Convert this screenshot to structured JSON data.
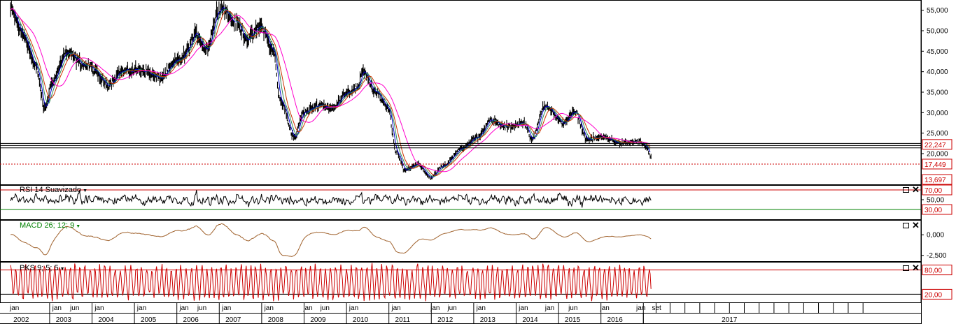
{
  "chart_data": [
    {
      "type": "line",
      "panel": "price",
      "description_series": [
        "price bars",
        "moving averages"
      ],
      "price_bars_color": "#000000",
      "moving_averages": [
        {
          "color": "#0000cc"
        },
        {
          "color": "#2e8b57"
        },
        {
          "color": "#cc3300"
        },
        {
          "color": "#ff00cc"
        }
      ],
      "y_ticks": [
        "55,000",
        "50,000",
        "45,000",
        "40,000",
        "35,000",
        "30,000",
        "25,000",
        "20,000"
      ],
      "y_tick_values": [
        55000,
        50000,
        45000,
        40000,
        35000,
        30000,
        25000,
        20000
      ],
      "ylim": [
        12500,
        57500
      ],
      "key_points": [
        {
          "t": 2002.0,
          "v": 55000
        },
        {
          "t": 2002.3,
          "v": 49000
        },
        {
          "t": 2002.6,
          "v": 41000
        },
        {
          "t": 2002.8,
          "v": 31000
        },
        {
          "t": 2003.0,
          "v": 38000
        },
        {
          "t": 2003.3,
          "v": 44500
        },
        {
          "t": 2003.8,
          "v": 41500
        },
        {
          "t": 2004.3,
          "v": 37000
        },
        {
          "t": 2004.6,
          "v": 40000
        },
        {
          "t": 2005.1,
          "v": 40500
        },
        {
          "t": 2005.5,
          "v": 38500
        },
        {
          "t": 2006.0,
          "v": 43000
        },
        {
          "t": 2006.4,
          "v": 49000
        },
        {
          "t": 2006.6,
          "v": 45500
        },
        {
          "t": 2006.95,
          "v": 56000
        },
        {
          "t": 2007.3,
          "v": 52000
        },
        {
          "t": 2007.6,
          "v": 48000
        },
        {
          "t": 2007.9,
          "v": 51000
        },
        {
          "t": 2008.2,
          "v": 45000
        },
        {
          "t": 2008.35,
          "v": 33000
        },
        {
          "t": 2008.7,
          "v": 24000
        },
        {
          "t": 2008.9,
          "v": 30000
        },
        {
          "t": 2009.3,
          "v": 32000
        },
        {
          "t": 2009.6,
          "v": 31000
        },
        {
          "t": 2009.9,
          "v": 35000
        },
        {
          "t": 2010.2,
          "v": 36000
        },
        {
          "t": 2010.3,
          "v": 40500
        },
        {
          "t": 2010.6,
          "v": 35000
        },
        {
          "t": 2010.9,
          "v": 31000
        },
        {
          "t": 2011.1,
          "v": 20000
        },
        {
          "t": 2011.3,
          "v": 16000
        },
        {
          "t": 2011.6,
          "v": 17500
        },
        {
          "t": 2011.9,
          "v": 14200
        },
        {
          "t": 2012.2,
          "v": 17000
        },
        {
          "t": 2012.6,
          "v": 21000
        },
        {
          "t": 2013.0,
          "v": 24000
        },
        {
          "t": 2013.3,
          "v": 28000
        },
        {
          "t": 2013.7,
          "v": 26500
        },
        {
          "t": 2014.1,
          "v": 27500
        },
        {
          "t": 2014.3,
          "v": 23500
        },
        {
          "t": 2014.6,
          "v": 32000
        },
        {
          "t": 2015.0,
          "v": 27500
        },
        {
          "t": 2015.3,
          "v": 30000
        },
        {
          "t": 2015.6,
          "v": 23500
        },
        {
          "t": 2016.0,
          "v": 24000
        },
        {
          "t": 2016.4,
          "v": 22500
        },
        {
          "t": 2016.8,
          "v": 23000
        },
        {
          "t": 2017.0,
          "v": 21500
        },
        {
          "t": 2017.1,
          "v": 19000
        }
      ],
      "horizontal_lines": [
        {
          "value": 22247,
          "style": "solid-double",
          "color": "#000000"
        },
        {
          "value": 21400,
          "style": "solid",
          "color": "#000000"
        },
        {
          "value": 17449,
          "style": "dotted",
          "color": "#cc0000"
        }
      ],
      "price_labels": [
        "22,247",
        "17,449",
        "13,697"
      ],
      "price_label_values": [
        22247,
        17449,
        13697
      ],
      "price_label_color": "#cc0000"
    },
    {
      "type": "line",
      "panel": "rsi",
      "title": "RSI 14 Suavizado",
      "series_color": "#000000",
      "levels": [
        {
          "value": 70,
          "label": "70,00",
          "color": "#cc0000"
        },
        {
          "value": 30,
          "label": "30,00",
          "color": "#008000"
        }
      ],
      "y_ticks": [
        "50,00"
      ],
      "y_tick_values": [
        50
      ],
      "ylim": [
        10,
        80
      ]
    },
    {
      "type": "line",
      "panel": "macd",
      "title": "MACD 26; 12; 9",
      "title_color": "#008000",
      "series_color": "#a0622d",
      "y_ticks": [
        "0,000",
        "-2,500"
      ],
      "y_tick_values": [
        0,
        -2500
      ],
      "ylim": [
        -3200,
        1800
      ]
    },
    {
      "type": "line",
      "panel": "pks",
      "title": "PKS 9; 5; 5",
      "series_color": "#cc0000",
      "levels": [
        {
          "value": 80,
          "label": "80,00",
          "color": "#cc0000"
        },
        {
          "value": 20,
          "label": "20,00",
          "color": "#000000"
        }
      ],
      "ylim": [
        0,
        100
      ]
    }
  ],
  "time_axis": {
    "month_labels": [
      {
        "t": 2002.08,
        "label": "jan"
      },
      {
        "t": 2003.08,
        "label": "jan"
      },
      {
        "t": 2003.5,
        "label": "jun"
      },
      {
        "t": 2004.08,
        "label": "jan"
      },
      {
        "t": 2005.08,
        "label": "jan"
      },
      {
        "t": 2006.08,
        "label": "jan"
      },
      {
        "t": 2006.5,
        "label": "jun"
      },
      {
        "t": 2007.08,
        "label": "jan"
      },
      {
        "t": 2008.08,
        "label": "jan"
      },
      {
        "t": 2009.0,
        "label": "jan"
      },
      {
        "t": 2009.4,
        "label": "jun"
      },
      {
        "t": 2010.08,
        "label": "jan"
      },
      {
        "t": 2011.08,
        "label": "jan"
      },
      {
        "t": 2012.0,
        "label": "jan"
      },
      {
        "t": 2012.4,
        "label": "jun"
      },
      {
        "t": 2013.08,
        "label": "jan"
      },
      {
        "t": 2014.08,
        "label": "jan"
      },
      {
        "t": 2014.7,
        "label": "jan"
      },
      {
        "t": 2015.25,
        "label": "jun"
      },
      {
        "t": 2016.0,
        "label": "jan"
      },
      {
        "t": 2016.85,
        "label": "jan"
      },
      {
        "t": 2017.22,
        "label": "set"
      }
    ],
    "year_labels": [
      {
        "t": 2002.0,
        "label": "2002"
      },
      {
        "t": 2003.0,
        "label": "2003"
      },
      {
        "t": 2004.0,
        "label": "2004"
      },
      {
        "t": 2005.0,
        "label": "2005"
      },
      {
        "t": 2006.0,
        "label": "2006"
      },
      {
        "t": 2007.0,
        "label": "2007"
      },
      {
        "t": 2008.0,
        "label": "2008"
      },
      {
        "t": 2009.0,
        "label": "2009"
      },
      {
        "t": 2010.0,
        "label": "2010"
      },
      {
        "t": 2011.0,
        "label": "2011"
      },
      {
        "t": 2012.0,
        "label": "2012"
      },
      {
        "t": 2013.0,
        "label": "2013"
      },
      {
        "t": 2014.0,
        "label": "2014"
      },
      {
        "t": 2015.0,
        "label": "2015"
      },
      {
        "t": 2016.0,
        "label": "2016"
      },
      {
        "t": 2018.7,
        "label": "2017"
      }
    ],
    "year_dividers": [
      2002.5,
      2003.5,
      2004.5,
      2005.5,
      2006.5,
      2007.5,
      2008.5,
      2009.5,
      2010.5,
      2011.5,
      2012.5,
      2013.5,
      2014.5,
      2015.5,
      2016.5
    ],
    "grid_ticks_future": [
      2017.22,
      2017.55,
      2017.9,
      2018.25,
      2018.6,
      2018.95,
      2019.3,
      2019.65,
      2020.0,
      2020.35,
      2020.7,
      2021.05,
      2021.4,
      2021.75,
      2022.1
    ]
  },
  "controls": {
    "maximize_glyph": "",
    "close_glyph": "✕",
    "dropdown_glyph": "▼"
  }
}
